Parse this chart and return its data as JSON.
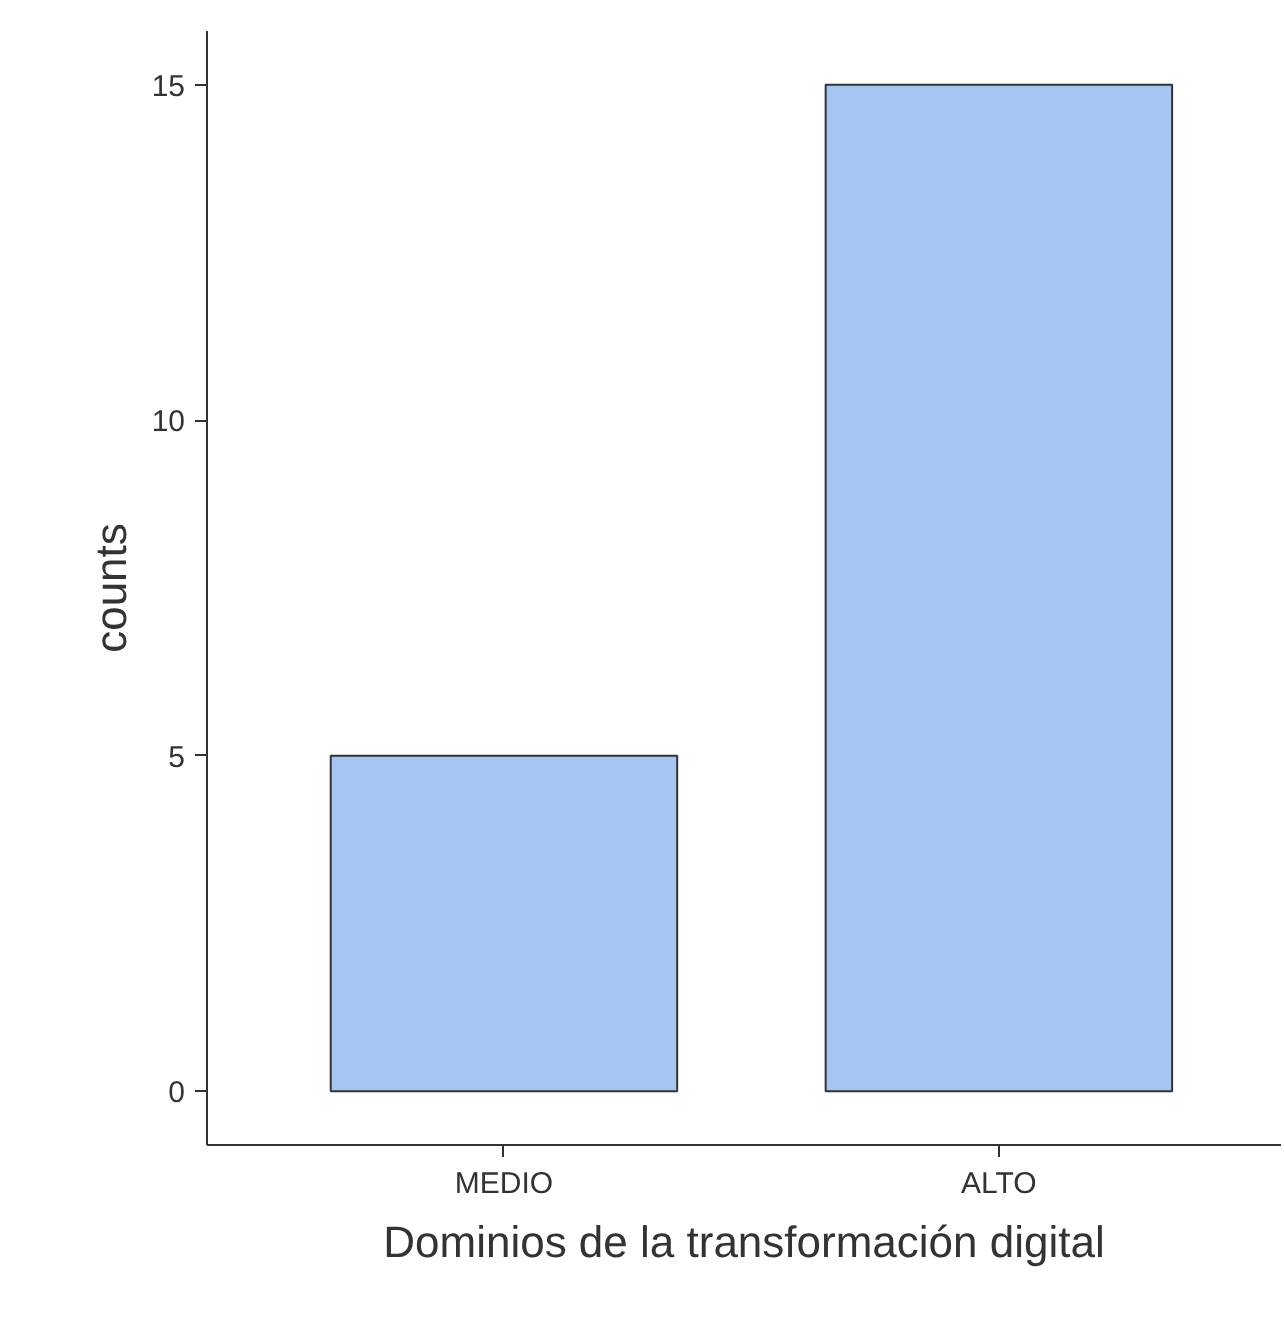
{
  "chart_data": {
    "type": "bar",
    "xlabel": "Dominios de la transformación digital",
    "ylabel": "counts",
    "categories": [
      "MEDIO",
      "ALTO"
    ],
    "values": [
      5,
      15
    ],
    "color": "#a6c5f0",
    "ylim": [
      -0.8,
      15.8
    ],
    "yticks": [
      0,
      5,
      10,
      15
    ],
    "grid": false
  }
}
